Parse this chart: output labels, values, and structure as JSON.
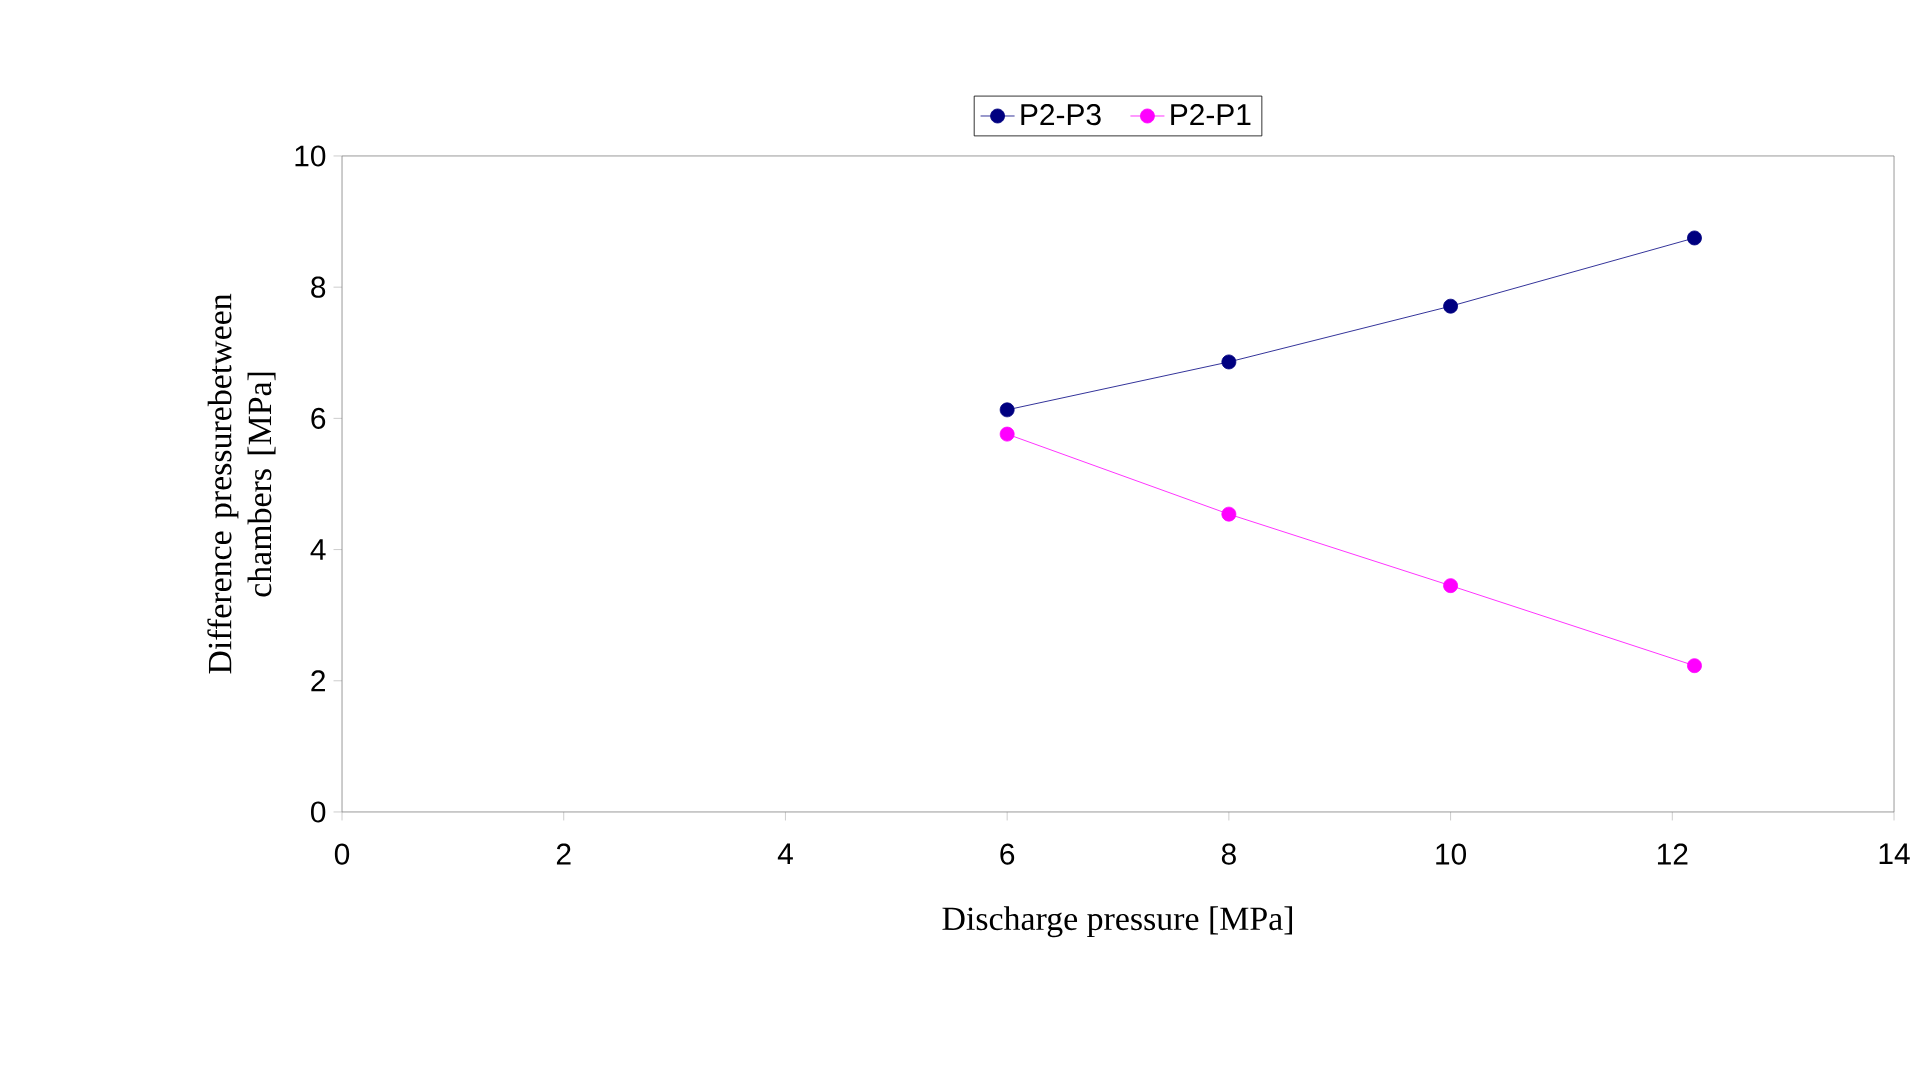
{
  "chart_data": {
    "type": "line",
    "xlabel": "Discharge pressure [MPa]",
    "ylabel": "Difference pressurebetween chambers [MPa]",
    "xlim": [
      0,
      14
    ],
    "xticks": [
      0,
      2,
      4,
      6,
      8,
      10,
      12,
      14
    ],
    "ylim": [
      0,
      10
    ],
    "yticks": [
      0,
      2,
      4,
      6,
      8,
      10
    ],
    "grid": false,
    "legend": "top",
    "marker": "circle",
    "line_style": "solid",
    "series": [
      {
        "name": "P2-P3",
        "color": "#000080",
        "x": [
          6,
          8,
          10,
          12.2
        ],
        "values": [
          6.13,
          6.86,
          7.71,
          8.75
        ]
      },
      {
        "name": "P2-P1",
        "color": "#ff00ff",
        "x": [
          6,
          8,
          10,
          12.2
        ],
        "values": [
          5.76,
          4.54,
          3.45,
          2.23
        ]
      }
    ]
  }
}
